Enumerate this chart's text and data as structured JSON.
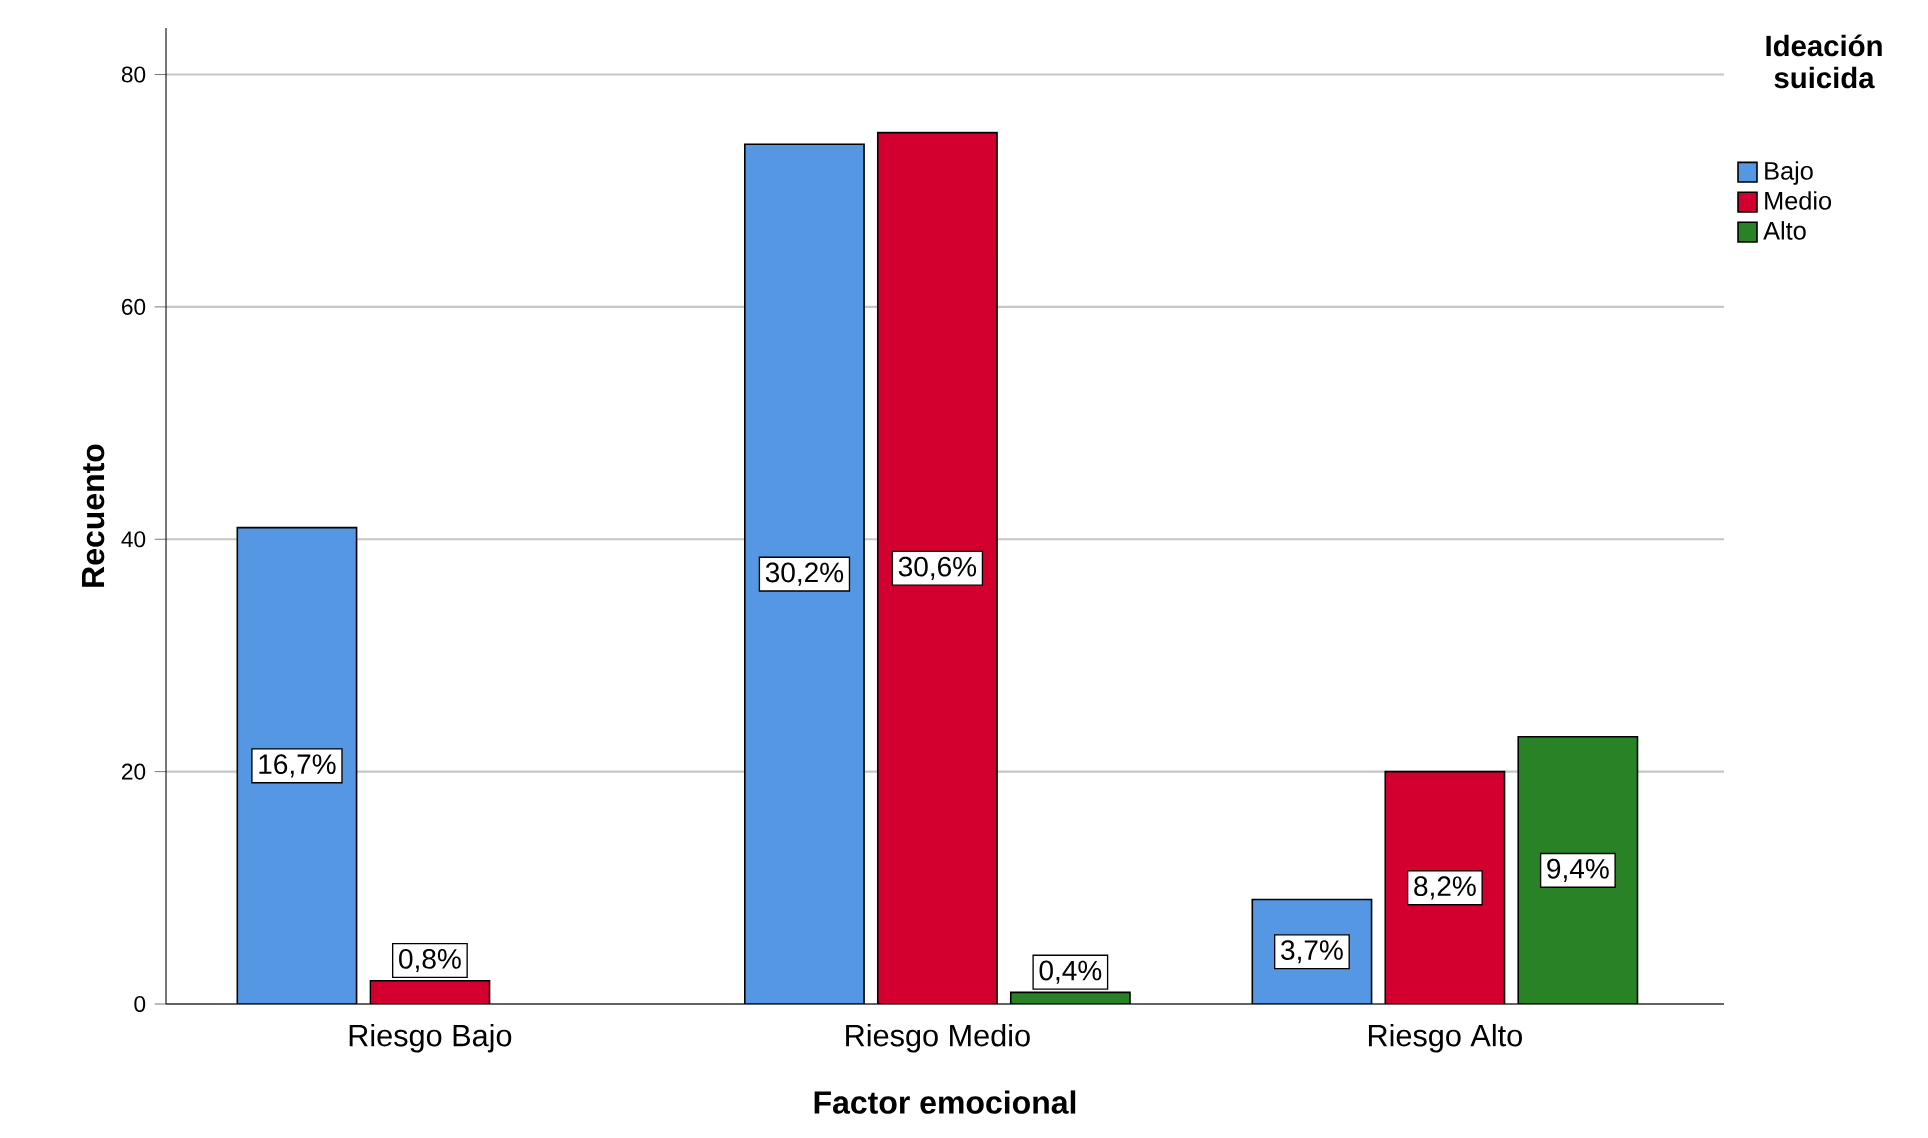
{
  "chart_data": {
    "type": "bar",
    "xlabel": "Factor emocional",
    "ylabel": "Recuento",
    "legend_title": "Ideación suicida",
    "categories": [
      "Riesgo Bajo",
      "Riesgo Medio",
      "Riesgo Alto"
    ],
    "series": [
      {
        "name": "Bajo",
        "color": "#5597e3",
        "values": [
          41,
          74,
          9
        ]
      },
      {
        "name": "Medio",
        "color": "#d3002f",
        "values": [
          2,
          75,
          20
        ]
      },
      {
        "name": "Alto",
        "color": "#2a8227",
        "values": [
          null,
          1,
          23
        ]
      }
    ],
    "annotations": [
      "16,7%",
      "0,8%",
      "30,2%",
      "30,6%",
      "0,4%",
      "3,7%",
      "8,2%",
      "9,4%"
    ],
    "ylim": [
      0,
      84
    ],
    "yticks": [
      0,
      20,
      40,
      60,
      80
    ],
    "grid": "y",
    "legend": "top right"
  }
}
